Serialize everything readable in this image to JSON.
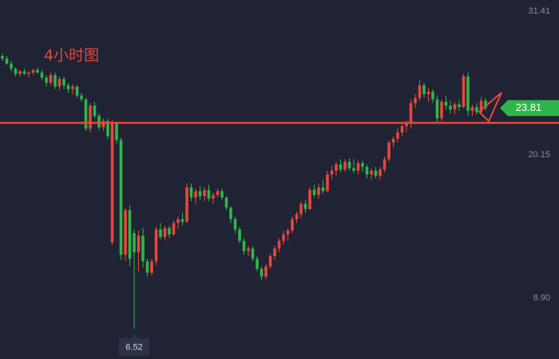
{
  "chart_data": {
    "type": "candlestick",
    "title": "4小时图",
    "up_color": "#e8473c",
    "down_color": "#2fb64a",
    "level_color": "#e8473c",
    "level": 22.65,
    "ylim": [
      4.13,
      32.29
    ],
    "yticks": [
      31.41,
      20.15,
      {
        "value": 8.9,
        "label": "8.90"
      }
    ],
    "candles": [
      [
        27.9,
        28.1,
        27.5,
        27.7
      ],
      [
        27.7,
        27.9,
        27.2,
        27.3
      ],
      [
        27.3,
        27.5,
        26.7,
        26.9
      ],
      [
        26.9,
        27.0,
        26.3,
        26.5
      ],
      [
        26.5,
        26.8,
        26.3,
        26.7
      ],
      [
        26.7,
        26.9,
        26.4,
        26.5
      ],
      [
        26.5,
        26.7,
        26.2,
        26.6
      ],
      [
        26.6,
        26.9,
        26.4,
        26.8
      ],
      [
        26.8,
        27.0,
        26.5,
        26.6
      ],
      [
        26.6,
        26.8,
        26.0,
        26.2
      ],
      [
        26.2,
        26.4,
        25.5,
        25.8
      ],
      [
        25.8,
        26.6,
        25.6,
        26.4
      ],
      [
        26.4,
        26.6,
        25.3,
        25.5
      ],
      [
        25.5,
        26.3,
        25.2,
        26.1
      ],
      [
        26.1,
        26.3,
        25.3,
        25.6
      ],
      [
        25.6,
        25.8,
        25.0,
        25.3
      ],
      [
        25.3,
        25.7,
        24.9,
        25.5
      ],
      [
        25.5,
        25.6,
        24.6,
        24.8
      ],
      [
        24.8,
        25.0,
        24.3,
        24.5
      ],
      [
        24.5,
        24.6,
        22.0,
        22.2
      ],
      [
        22.2,
        24.2,
        21.9,
        24.0
      ],
      [
        24.0,
        24.3,
        23.0,
        23.2
      ],
      [
        23.2,
        23.4,
        22.1,
        22.3
      ],
      [
        22.3,
        23.0,
        22.0,
        22.8
      ],
      [
        22.8,
        23.0,
        21.4,
        21.6
      ],
      [
        13.3,
        22.9,
        13.1,
        22.6
      ],
      [
        22.6,
        22.7,
        21.0,
        21.3
      ],
      [
        21.3,
        21.5,
        11.9,
        12.3
      ],
      [
        12.3,
        16.0,
        11.8,
        15.8
      ],
      [
        15.8,
        16.2,
        11.4,
        12.0
      ],
      [
        14.0,
        14.3,
        6.52,
        12.5
      ],
      [
        12.5,
        14.2,
        11.0,
        13.8
      ],
      [
        13.8,
        14.4,
        11.3,
        11.8
      ],
      [
        11.8,
        12.0,
        10.6,
        10.9
      ],
      [
        10.9,
        12.0,
        10.7,
        11.8
      ],
      [
        11.8,
        14.5,
        11.5,
        14.3
      ],
      [
        14.3,
        14.8,
        13.5,
        13.7
      ],
      [
        13.7,
        14.6,
        13.4,
        14.4
      ],
      [
        14.4,
        14.6,
        13.6,
        13.9
      ],
      [
        13.9,
        15.0,
        13.8,
        14.8
      ],
      [
        14.8,
        15.3,
        14.3,
        15.1
      ],
      [
        15.1,
        15.6,
        14.6,
        14.9
      ],
      [
        14.9,
        17.9,
        14.8,
        17.6
      ],
      [
        17.6,
        17.9,
        16.5,
        16.8
      ],
      [
        16.8,
        17.5,
        16.3,
        17.3
      ],
      [
        17.3,
        17.7,
        16.6,
        16.9
      ],
      [
        16.9,
        17.6,
        16.5,
        17.4
      ],
      [
        17.4,
        17.8,
        16.5,
        16.7
      ],
      [
        16.7,
        17.2,
        16.3,
        17.0
      ],
      [
        17.0,
        17.5,
        16.8,
        17.3
      ],
      [
        17.3,
        17.5,
        16.6,
        16.8
      ],
      [
        16.8,
        16.9,
        15.8,
        16.0
      ],
      [
        16.0,
        16.1,
        14.8,
        15.1
      ],
      [
        15.1,
        15.3,
        14.0,
        14.3
      ],
      [
        14.3,
        14.5,
        13.2,
        13.4
      ],
      [
        13.4,
        13.6,
        12.3,
        12.6
      ],
      [
        12.6,
        13.0,
        12.2,
        12.8
      ],
      [
        12.8,
        13.0,
        11.8,
        12.0
      ],
      [
        12.0,
        12.2,
        11.0,
        11.2
      ],
      [
        11.2,
        11.4,
        10.3,
        10.6
      ],
      [
        10.6,
        11.6,
        10.4,
        11.4
      ],
      [
        11.4,
        12.4,
        11.2,
        12.2
      ],
      [
        12.2,
        13.0,
        11.9,
        12.8
      ],
      [
        12.8,
        13.6,
        12.5,
        13.4
      ],
      [
        13.4,
        14.2,
        13.1,
        13.9
      ],
      [
        13.9,
        14.4,
        13.4,
        14.2
      ],
      [
        14.2,
        15.3,
        14.0,
        15.1
      ],
      [
        15.1,
        15.7,
        14.8,
        15.5
      ],
      [
        15.5,
        16.5,
        15.2,
        16.3
      ],
      [
        16.3,
        16.6,
        15.6,
        15.9
      ],
      [
        15.9,
        17.6,
        15.8,
        17.4
      ],
      [
        17.4,
        17.8,
        16.8,
        17.0
      ],
      [
        17.0,
        17.9,
        16.7,
        17.6
      ],
      [
        17.6,
        18.2,
        17.1,
        17.3
      ],
      [
        17.3,
        18.9,
        17.2,
        18.6
      ],
      [
        18.6,
        19.3,
        18.2,
        18.9
      ],
      [
        18.9,
        19.6,
        18.5,
        19.4
      ],
      [
        19.4,
        19.8,
        18.8,
        19.0
      ],
      [
        19.0,
        19.8,
        18.8,
        19.6
      ],
      [
        19.6,
        19.9,
        18.9,
        19.1
      ],
      [
        19.1,
        19.8,
        18.7,
        18.9
      ],
      [
        18.9,
        19.7,
        18.6,
        19.5
      ],
      [
        19.5,
        19.7,
        18.8,
        19.2
      ],
      [
        19.2,
        19.4,
        18.3,
        18.6
      ],
      [
        18.6,
        19.1,
        18.2,
        18.9
      ],
      [
        18.9,
        19.2,
        18.3,
        18.5
      ],
      [
        18.5,
        19.2,
        18.2,
        19.0
      ],
      [
        19.0,
        20.0,
        18.8,
        19.8
      ],
      [
        19.8,
        21.3,
        19.6,
        21.1
      ],
      [
        21.1,
        21.6,
        20.7,
        21.4
      ],
      [
        21.4,
        22.2,
        21.1,
        21.9
      ],
      [
        21.9,
        22.7,
        21.6,
        22.4
      ],
      [
        22.4,
        22.8,
        21.9,
        22.6
      ],
      [
        22.6,
        24.5,
        22.2,
        24.2
      ],
      [
        24.2,
        24.9,
        23.8,
        24.6
      ],
      [
        24.6,
        26.0,
        24.4,
        25.6
      ],
      [
        25.6,
        25.8,
        24.6,
        24.9
      ],
      [
        24.9,
        25.4,
        24.3,
        25.1
      ],
      [
        25.1,
        25.3,
        24.2,
        24.5
      ],
      [
        24.5,
        24.8,
        22.6,
        23.0
      ],
      [
        23.0,
        24.5,
        22.8,
        24.3
      ],
      [
        24.3,
        24.8,
        23.7,
        24.0
      ],
      [
        24.0,
        24.4,
        23.4,
        23.7
      ],
      [
        23.7,
        24.3,
        23.3,
        24.1
      ],
      [
        24.1,
        24.4,
        23.6,
        23.9
      ],
      [
        23.9,
        26.5,
        23.8,
        26.3
      ],
      [
        26.3,
        26.6,
        23.2,
        23.6
      ],
      [
        23.6,
        24.1,
        23.2,
        23.9
      ],
      [
        23.9,
        24.2,
        23.3,
        23.5
      ],
      [
        23.5,
        24.7,
        23.4,
        24.4
      ],
      [
        24.4,
        24.6,
        23.6,
        23.81
      ]
    ]
  }
}
